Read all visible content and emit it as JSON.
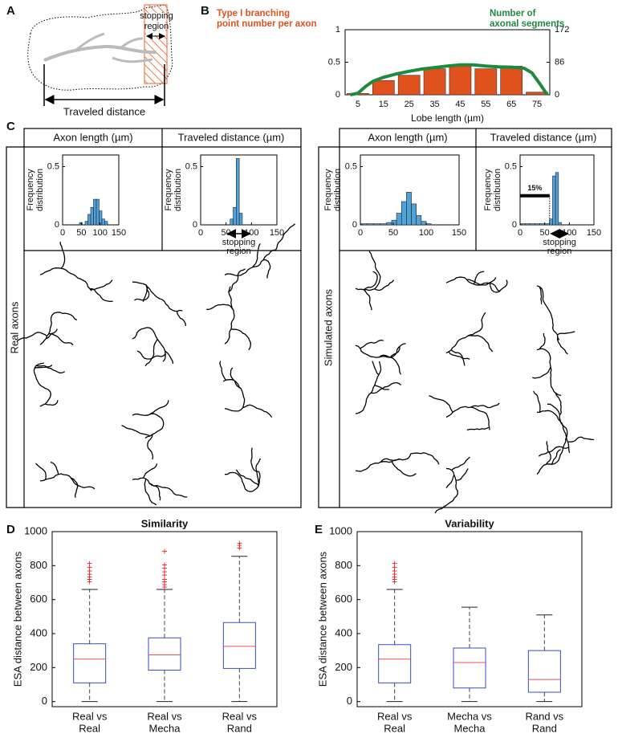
{
  "panel_labels": [
    "A",
    "B",
    "C",
    "D",
    "E"
  ],
  "panel_A": {
    "stopping_region": [
      "stopping",
      "region"
    ],
    "traveled_distance": "Traveled distance"
  },
  "panel_C": {
    "column_headers": [
      "Axon length (µm)",
      "Traveled distance (µm)",
      "Axon length (µm)",
      "Traveled distance (µm)"
    ],
    "row_labels": [
      "Real axons",
      "Simulated axons"
    ]
  },
  "chart_data": [
    {
      "type": "bar",
      "xlabel": "Lobe length (µm)",
      "categories": [
        5,
        15,
        25,
        35,
        45,
        55,
        65,
        75
      ],
      "xlim": [
        0,
        80
      ],
      "ylim": [
        0,
        1
      ],
      "yticks": [
        0,
        0.5,
        1
      ],
      "y2lim": [
        0,
        172
      ],
      "y2ticks": [
        0,
        86,
        172
      ],
      "series": [
        {
          "name": [
            "Type I branching",
            "point number per axon"
          ],
          "color": "#e0521d",
          "values": [
            0.02,
            0.22,
            0.3,
            0.4,
            0.44,
            0.4,
            0.44,
            0.04
          ]
        },
        {
          "name": [
            "Number of",
            "axonal segments"
          ],
          "color": "#1e8a3e",
          "axis": "y2",
          "x": [
            2,
            5,
            8,
            11,
            15,
            20,
            25,
            30,
            35,
            40,
            45,
            50,
            55,
            60,
            65,
            70,
            73,
            76,
            79
          ],
          "values": [
            0,
            4,
            22,
            36,
            46,
            55,
            62,
            68,
            72,
            76,
            79,
            79,
            76,
            74,
            73,
            70,
            58,
            30,
            0
          ]
        }
      ]
    },
    {
      "type": "histogram",
      "ylabel": [
        "Frequency",
        "distribution"
      ],
      "color": "#4fa3db",
      "bins": [
        45,
        52.5,
        60,
        67.5,
        75,
        82.5,
        90,
        97.5,
        105,
        112.5,
        120
      ],
      "values": [
        0.02,
        0,
        0.03,
        0.09,
        0.15,
        0.22,
        0.22,
        0.12,
        0.05,
        0.03
      ],
      "xlim": [
        0,
        150
      ],
      "xticks": [
        0,
        50,
        100,
        150
      ],
      "ylim": [
        0,
        0.6
      ],
      "yticks": [
        0,
        0.5
      ]
    },
    {
      "type": "histogram",
      "ylabel": [
        "Frequency",
        "distribution"
      ],
      "color": "#4fa3db",
      "bins": [
        58,
        64,
        70,
        76,
        82
      ],
      "values": [
        0.05,
        0.15,
        0.57,
        0.1
      ],
      "xlim": [
        0,
        150
      ],
      "xticks": [
        0,
        50,
        100,
        150
      ],
      "ylim": [
        0,
        0.6
      ],
      "yticks": [
        0,
        0.5
      ],
      "annotation": [
        "stopping",
        "region"
      ],
      "region": [
        50,
        100
      ]
    },
    {
      "type": "histogram",
      "ylabel": [
        "Frequency",
        "distribution"
      ],
      "color": "#4fa3db",
      "bins": [
        0,
        10,
        20,
        30,
        40,
        47.5,
        55,
        62.5,
        70,
        77.5,
        85,
        92.5,
        100,
        107.5
      ],
      "values": [
        0.01,
        0.01,
        0.01,
        0.01,
        0.02,
        0.04,
        0.1,
        0.2,
        0.28,
        0.18,
        0.08,
        0.03,
        0.01
      ],
      "xlim": [
        0,
        150
      ],
      "xticks": [
        0,
        50,
        100,
        150
      ],
      "ylim": [
        0,
        0.6
      ],
      "yticks": [
        0,
        0.5
      ]
    },
    {
      "type": "histogram",
      "ylabel": [
        "Frequency",
        "distribution"
      ],
      "color": "#4fa3db",
      "bins": [
        0,
        10,
        20,
        30,
        40,
        50,
        60,
        66,
        72,
        78,
        84
      ],
      "values": [
        0.01,
        0.01,
        0.01,
        0.01,
        0.01,
        0.01,
        0.05,
        0.42,
        0.45,
        0.02
      ],
      "xlim": [
        0,
        150
      ],
      "xticks": [
        0,
        50,
        100,
        150
      ],
      "ylim": [
        0,
        0.6
      ],
      "yticks": [
        0,
        0.5
      ],
      "annotation": [
        "stopping",
        "region"
      ],
      "region": [
        60,
        100
      ],
      "percent_label": "15%",
      "threshold": 60
    },
    {
      "type": "box",
      "title": "Similarity",
      "ylabel": "ESA distance between axons",
      "categories": [
        [
          "Real vs",
          "Real"
        ],
        [
          "Real vs",
          "Mecha"
        ],
        [
          "Real vs",
          "Rand"
        ]
      ],
      "ylim": [
        -30,
        1000
      ],
      "yticks": [
        0,
        200,
        400,
        600,
        800,
        1000
      ],
      "box_color": "#3a4bc4",
      "median_color": "#e8505b",
      "flier_color": "#e5202a",
      "boxes": [
        {
          "whislo": 0,
          "q1": 110,
          "med": 250,
          "q3": 340,
          "whishi": 660,
          "fliers": [
            700,
            715,
            730,
            745,
            765,
            785,
            810
          ]
        },
        {
          "whislo": 0,
          "q1": 185,
          "med": 275,
          "q3": 375,
          "whishi": 660,
          "fliers": [
            670,
            685,
            700,
            715,
            740,
            760,
            780,
            800,
            880
          ]
        },
        {
          "whislo": 0,
          "q1": 195,
          "med": 325,
          "q3": 465,
          "whishi": 855,
          "fliers": [
            900,
            915,
            928
          ]
        }
      ]
    },
    {
      "type": "box",
      "title": "Variability",
      "ylabel": "ESA distance between axons",
      "categories": [
        [
          "Real vs",
          "Real"
        ],
        [
          "Mecha vs",
          "Mecha"
        ],
        [
          "Rand vs",
          "Rand"
        ]
      ],
      "ylim": [
        -30,
        1000
      ],
      "yticks": [
        0,
        200,
        400,
        600,
        800,
        1000
      ],
      "box_color": "#3a4bc4",
      "median_color": "#e8505b",
      "flier_color": "#e5202a",
      "boxes": [
        {
          "whislo": 0,
          "q1": 110,
          "med": 250,
          "q3": 335,
          "whishi": 660,
          "fliers": [
            700,
            715,
            730,
            745,
            765,
            785,
            810
          ]
        },
        {
          "whislo": 0,
          "q1": 80,
          "med": 230,
          "q3": 315,
          "whishi": 555,
          "fliers": []
        },
        {
          "whislo": 0,
          "q1": 55,
          "med": 130,
          "q3": 300,
          "whishi": 510,
          "fliers": []
        }
      ]
    }
  ]
}
